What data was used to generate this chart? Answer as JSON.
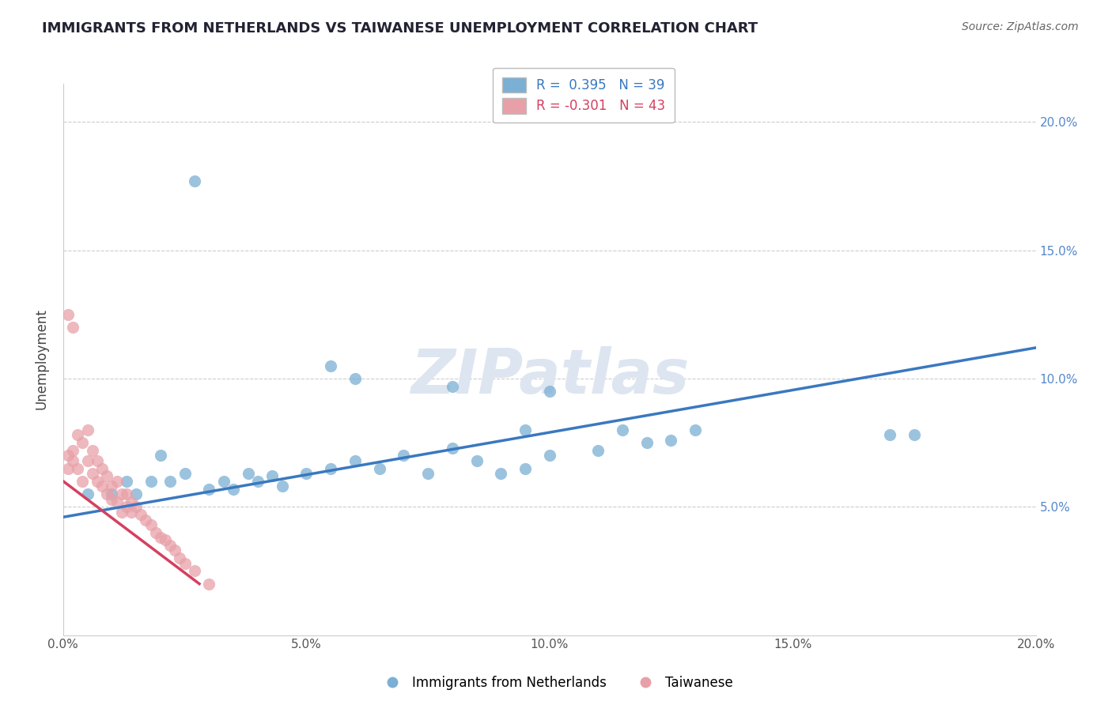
{
  "title": "IMMIGRANTS FROM NETHERLANDS VS TAIWANESE UNEMPLOYMENT CORRELATION CHART",
  "source": "Source: ZipAtlas.com",
  "ylabel": "Unemployment",
  "watermark": "ZIPatlas",
  "legend_blue_label": "Immigrants from Netherlands",
  "legend_pink_label": "Taiwanese",
  "R_blue": 0.395,
  "N_blue": 39,
  "R_pink": -0.301,
  "N_pink": 43,
  "xlim": [
    0.0,
    0.2
  ],
  "ylim": [
    0.0,
    0.215
  ],
  "xtick_labels": [
    "0.0%",
    "5.0%",
    "10.0%",
    "15.0%",
    "20.0%"
  ],
  "xtick_vals": [
    0.0,
    0.05,
    0.1,
    0.15,
    0.2
  ],
  "ytick_labels_right": [
    "5.0%",
    "10.0%",
    "15.0%",
    "20.0%"
  ],
  "ytick_vals": [
    0.05,
    0.1,
    0.15,
    0.2
  ],
  "blue_scatter_x": [
    0.027,
    0.055,
    0.06,
    0.08,
    0.095,
    0.1,
    0.115,
    0.125,
    0.17,
    0.005,
    0.01,
    0.013,
    0.015,
    0.018,
    0.02,
    0.022,
    0.025,
    0.03,
    0.033,
    0.035,
    0.038,
    0.04,
    0.043,
    0.045,
    0.05,
    0.055,
    0.06,
    0.065,
    0.07,
    0.075,
    0.08,
    0.085,
    0.09,
    0.095,
    0.1,
    0.11,
    0.12,
    0.13,
    0.175
  ],
  "blue_scatter_y": [
    0.177,
    0.105,
    0.1,
    0.097,
    0.08,
    0.095,
    0.08,
    0.076,
    0.078,
    0.055,
    0.055,
    0.06,
    0.055,
    0.06,
    0.07,
    0.06,
    0.063,
    0.057,
    0.06,
    0.057,
    0.063,
    0.06,
    0.062,
    0.058,
    0.063,
    0.065,
    0.068,
    0.065,
    0.07,
    0.063,
    0.073,
    0.068,
    0.063,
    0.065,
    0.07,
    0.072,
    0.075,
    0.08,
    0.078
  ],
  "pink_scatter_x": [
    0.001,
    0.001,
    0.002,
    0.002,
    0.003,
    0.003,
    0.004,
    0.004,
    0.005,
    0.005,
    0.006,
    0.006,
    0.007,
    0.007,
    0.008,
    0.008,
    0.009,
    0.009,
    0.01,
    0.01,
    0.011,
    0.011,
    0.012,
    0.012,
    0.013,
    0.013,
    0.014,
    0.014,
    0.015,
    0.016,
    0.017,
    0.018,
    0.019,
    0.02,
    0.021,
    0.022,
    0.023,
    0.024,
    0.025,
    0.027,
    0.03,
    0.001,
    0.002
  ],
  "pink_scatter_y": [
    0.065,
    0.07,
    0.072,
    0.068,
    0.078,
    0.065,
    0.075,
    0.06,
    0.08,
    0.068,
    0.072,
    0.063,
    0.068,
    0.06,
    0.065,
    0.058,
    0.062,
    0.055,
    0.058,
    0.053,
    0.06,
    0.052,
    0.055,
    0.048,
    0.055,
    0.05,
    0.052,
    0.048,
    0.05,
    0.047,
    0.045,
    0.043,
    0.04,
    0.038,
    0.037,
    0.035,
    0.033,
    0.03,
    0.028,
    0.025,
    0.02,
    0.125,
    0.12
  ],
  "blue_line_x": [
    0.0,
    0.2
  ],
  "blue_line_y": [
    0.046,
    0.112
  ],
  "pink_line_x": [
    0.0,
    0.028
  ],
  "pink_line_y": [
    0.06,
    0.02
  ],
  "blue_color": "#7bafd4",
  "pink_color": "#e8a0a8",
  "blue_line_color": "#3a78c0",
  "pink_line_color": "#d44060",
  "title_color": "#222233",
  "source_color": "#666666",
  "watermark_color": "#dde5f0",
  "grid_color": "#cccccc",
  "background_color": "#ffffff"
}
